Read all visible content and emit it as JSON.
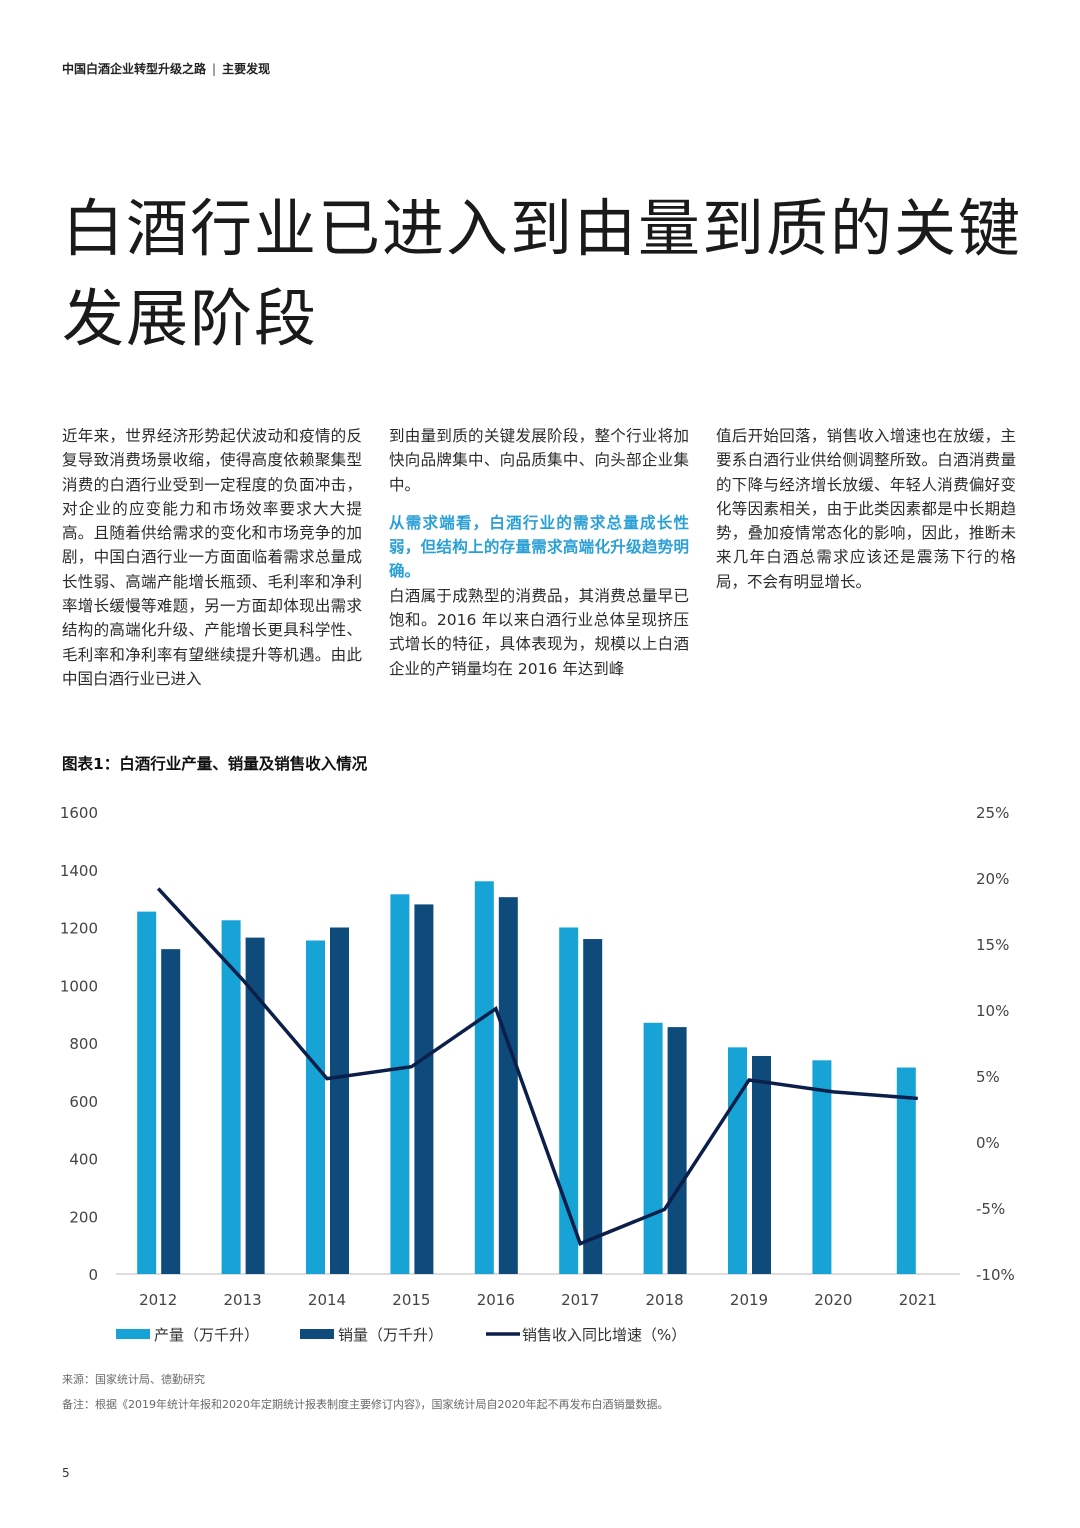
{
  "header": {
    "report_title": "中国白酒企业转型升级之路",
    "section": "主要发现"
  },
  "page_title": "白酒行业已进入到由量到质的关键发展阶段",
  "body": {
    "col1_p1": "近年来，世界经济形势起伏波动和疫情的反复导致消费场景收缩，使得高度依赖聚集型消费的白酒行业受到一定程度的负面冲击，对企业的应变能力和市场效率要求大大提高。且随着供给需求的变化和市场竞争的加剧，中国白酒行业一方面面临着需求总量成长性弱、高端产能增长瓶颈、毛利率和净利率增长缓慢等难题，另一方面却体现出需求结构的高端化升级、产能增长更具科学性、毛利率和净利率有望继续提升等机遇。由此中国白酒行业已进入",
    "col2_p1": "到由量到质的关键发展阶段，整个行业将加快向品牌集中、向品质集中、向头部企业集中。",
    "col2_highlight": "从需求端看，白酒行业的需求总量成长性弱，但结构上的存量需求高端化升级趋势明确。",
    "col2_p2": "白酒属于成熟型的消费品，其消费总量早已饱和。2016 年以来白酒行业总体呈现挤压式增长的特征，具体表现为，规模以上白酒企业的产销量均在 2016 年达到峰",
    "col3_p1": "值后开始回落，销售收入增速也在放缓，主要系白酒行业供给侧调整所致。白酒消费量的下降与经济增长放缓、年轻人消费偏好变化等因素相关，由于此类因素都是中长期趋势，叠加疫情常态化的影响，因此，推断未来几年白酒总需求应该还是震荡下行的格局，不会有明显增长。"
  },
  "chart_title": "图表1：白酒行业产量、销量及销售收入情况",
  "chart_data": {
    "type": "bar",
    "categories": [
      "2012",
      "2013",
      "2014",
      "2015",
      "2016",
      "2017",
      "2018",
      "2019",
      "2020",
      "2021"
    ],
    "series": [
      {
        "name": "产量（万千升）",
        "kind": "bar",
        "axis": "left",
        "color": "#17a3d6",
        "values": [
          1255,
          1225,
          1155,
          1315,
          1360,
          1200,
          870,
          785,
          740,
          715
        ]
      },
      {
        "name": "销量（万千升）",
        "kind": "bar",
        "axis": "left",
        "color": "#0e4a7a",
        "values": [
          1125,
          1165,
          1200,
          1280,
          1305,
          1160,
          855,
          755,
          null,
          null
        ]
      },
      {
        "name": "销售收入同比增速（%）",
        "kind": "line",
        "axis": "right",
        "color": "#0b1f4a",
        "values": [
          19.2,
          12.3,
          4.8,
          5.7,
          10.1,
          -7.7,
          -5.1,
          4.7,
          3.8,
          3.3
        ]
      }
    ],
    "y_left": {
      "min": 0,
      "max": 1600,
      "ticks": [
        "1600",
        "1400",
        "1200",
        "1000",
        "800",
        "600",
        "400",
        "200",
        "0"
      ]
    },
    "y_right": {
      "min": -10,
      "max": 25,
      "ticks": [
        "25%",
        "20%",
        "15%",
        "10%",
        "5%",
        "0%",
        "-5%",
        "-10%"
      ]
    },
    "legend_position": "bottom",
    "grid": false
  },
  "notes": {
    "source": "来源：国家统计局、德勤研究",
    "remark": "备注：根据《2019年统计年报和2020年定期统计报表制度主要修订内容》，国家统计局自2020年起不再发布白酒销量数据。"
  },
  "page_number": "5"
}
